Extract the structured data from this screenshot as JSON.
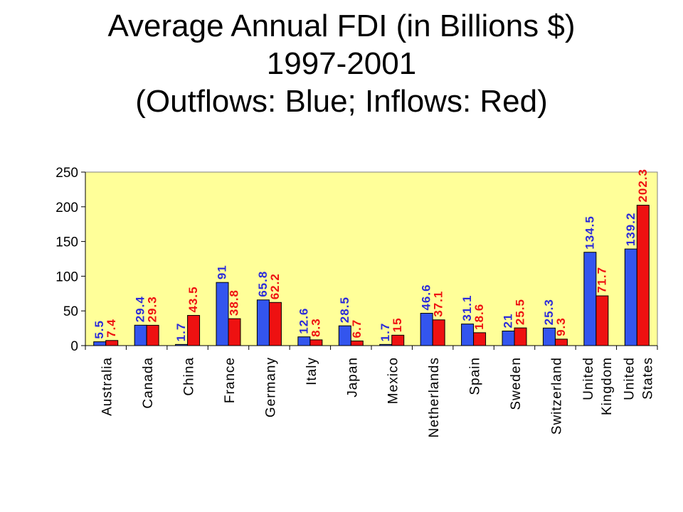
{
  "slide": {
    "title_line1": "Average Annual FDI (in Billions $)",
    "title_line2": "1997-2001",
    "title_line3": "(Outflows: Blue; Inflows: Red)"
  },
  "chart_data": {
    "type": "bar",
    "title": "",
    "xlabel": "",
    "ylabel": "",
    "ylim": [
      0,
      250
    ],
    "yticks": [
      "0",
      "50",
      "100",
      "150",
      "200",
      "250"
    ],
    "grid": false,
    "legend": "none",
    "categories": [
      [
        "Australia"
      ],
      [
        "Canada"
      ],
      [
        "China"
      ],
      [
        "France"
      ],
      [
        "Germany"
      ],
      [
        "Italy"
      ],
      [
        "Japan"
      ],
      [
        "Mexico"
      ],
      [
        "Netherlands"
      ],
      [
        "Spain"
      ],
      [
        "Sweden"
      ],
      [
        "Switzerland"
      ],
      [
        "United",
        "Kingdom"
      ],
      [
        "United",
        "States"
      ]
    ],
    "series": [
      {
        "color": "#3355ee",
        "label_color": "#2b2bd9",
        "values": [
          5.5,
          29.4,
          1.7,
          91,
          65.8,
          12.6,
          28.5,
          1.7,
          46.6,
          31.1,
          21,
          25.3,
          134.5,
          139.2
        ],
        "labels": [
          "5.5",
          "29.4",
          "1.7",
          "91",
          "65.8",
          "12.6",
          "28.5",
          "1.7",
          "46.6",
          "31.1",
          "21",
          "25.3",
          "134.5",
          "139.2"
        ]
      },
      {
        "color": "#ee1111",
        "label_color": "#ee1111",
        "values": [
          7.4,
          29.3,
          43.5,
          38.8,
          62.2,
          8.3,
          6.7,
          15,
          37.1,
          18.6,
          25.5,
          9.3,
          71.7,
          202.3
        ],
        "labels": [
          "7.4",
          "29.3",
          "43.5",
          "38.8",
          "62.2",
          "8.3",
          "6.7",
          "15",
          "37.1",
          "18.6",
          "25.5",
          "9.3",
          "71.7",
          "202.3"
        ]
      }
    ],
    "colors": {
      "plot_background": "#ffff99",
      "axis": "#000000"
    }
  }
}
